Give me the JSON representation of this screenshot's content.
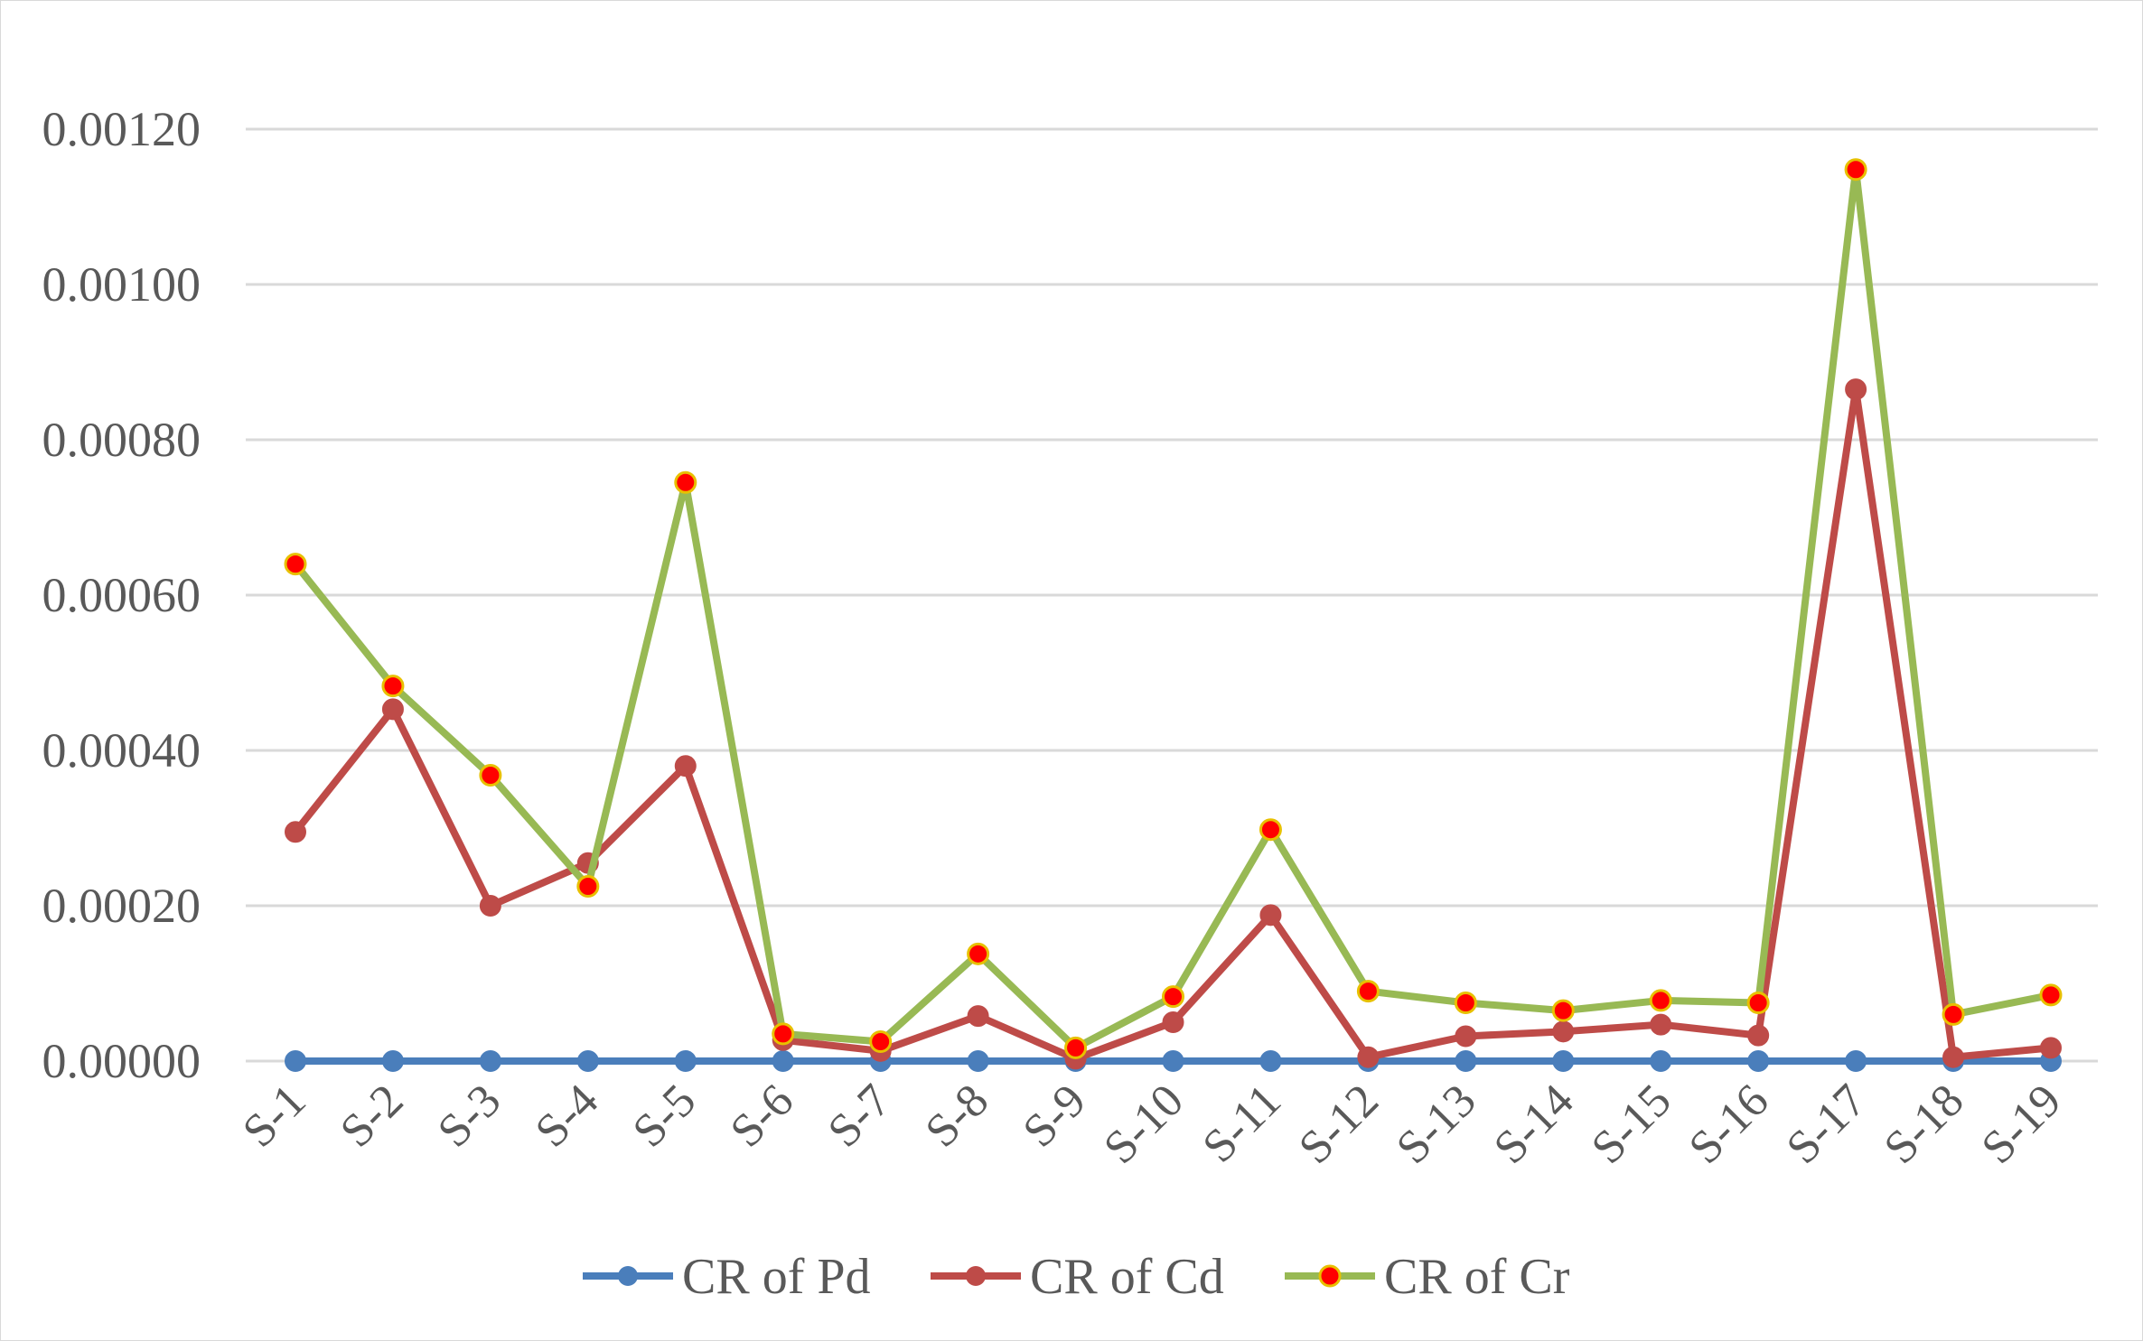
{
  "chart_data": {
    "type": "line",
    "categories": [
      "S-1",
      "S-2",
      "S-3",
      "S-4",
      "S-5",
      "S-6",
      "S-7",
      "S-8",
      "S-9",
      "S-10",
      "S-11",
      "S-12",
      "S-13",
      "S-14",
      "S-15",
      "S-16",
      "S-17",
      "S-18",
      "S-19"
    ],
    "ylim": [
      0,
      0.00125
    ],
    "yticks": [
      "0.00000",
      "0.00020",
      "0.00040",
      "0.00060",
      "0.00080",
      "0.00100",
      "0.00120"
    ],
    "ytick_values": [
      0,
      0.0002,
      0.0004,
      0.0006,
      0.0008,
      0.001,
      0.0012
    ],
    "grid": true,
    "legend_position": "bottom",
    "series": [
      {
        "name": "CR of Pd",
        "color": "#4a7ebb",
        "marker_fill": "#4a7ebb",
        "values": [
          0,
          0,
          0,
          0,
          0,
          0,
          0,
          0,
          0,
          0,
          0,
          0,
          0,
          0,
          0,
          0,
          0,
          0,
          0
        ]
      },
      {
        "name": "CR of Cd",
        "color": "#be4b48",
        "marker_fill": "#be4b48",
        "values": [
          0.000295,
          0.000453,
          0.0002,
          0.000255,
          0.00038,
          2.7e-05,
          1.3e-05,
          5.8e-05,
          3e-06,
          5e-05,
          0.000188,
          5e-06,
          3.2e-05,
          3.8e-05,
          4.7e-05,
          3.3e-05,
          0.000865,
          5e-06,
          1.7e-05
        ]
      },
      {
        "name": "CR of Cr",
        "color": "#98b954",
        "marker_fill": "#ff0000",
        "values": [
          0.00064,
          0.000483,
          0.000368,
          0.000225,
          0.000745,
          3.5e-05,
          2.5e-05,
          0.000138,
          1.7e-05,
          8.3e-05,
          0.000298,
          9e-05,
          7.5e-05,
          6.5e-05,
          7.8e-05,
          7.5e-05,
          0.001148,
          6e-05,
          8.5e-05
        ]
      }
    ]
  }
}
